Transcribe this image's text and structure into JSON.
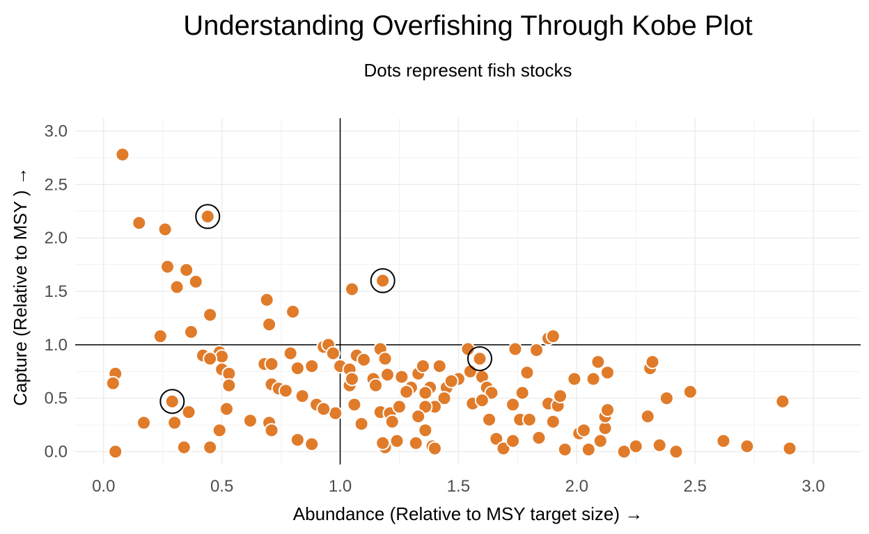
{
  "chart_data": {
    "type": "scatter",
    "title": "Understanding Overfishing Through Kobe Plot",
    "subtitle": "Dots represent fish stocks",
    "xlabel": "Abundance (Relative to MSY target size) →",
    "ylabel": "Capture (Relative to MSY ) →",
    "xlim": [
      -0.12,
      3.2
    ],
    "ylim": [
      -0.12,
      3.12
    ],
    "x_ticks": [
      "0.0",
      "0.5",
      "1.0",
      "1.5",
      "2.0",
      "2.5",
      "3.0"
    ],
    "y_ticks": [
      "0.0",
      "0.5",
      "1.0",
      "1.5",
      "2.0",
      "2.5",
      "3.0"
    ],
    "reference_lines": {
      "x": 1.0,
      "y": 1.0
    },
    "grid": true,
    "point_color": "#e07b2a",
    "highlight_ring_color": "#000000",
    "points": [
      [
        0.08,
        2.78
      ],
      [
        0.15,
        2.14
      ],
      [
        0.26,
        2.08
      ],
      [
        0.44,
        2.2
      ],
      [
        0.27,
        1.73
      ],
      [
        0.35,
        1.7
      ],
      [
        0.39,
        1.59
      ],
      [
        0.31,
        1.54
      ],
      [
        0.69,
        1.42
      ],
      [
        0.8,
        1.31
      ],
      [
        0.45,
        1.28
      ],
      [
        0.7,
        1.19
      ],
      [
        0.37,
        1.12
      ],
      [
        0.24,
        1.08
      ],
      [
        1.05,
        1.52
      ],
      [
        1.18,
        1.6
      ],
      [
        0.42,
        0.9
      ],
      [
        0.49,
        0.93
      ],
      [
        0.5,
        0.89
      ],
      [
        0.45,
        0.87
      ],
      [
        0.5,
        0.77
      ],
      [
        0.68,
        0.82
      ],
      [
        0.71,
        0.82
      ],
      [
        0.82,
        0.78
      ],
      [
        0.79,
        0.92
      ],
      [
        0.88,
        0.8
      ],
      [
        0.93,
        0.98
      ],
      [
        0.95,
        1.0
      ],
      [
        0.97,
        0.92
      ],
      [
        1.0,
        0.8
      ],
      [
        1.07,
        0.9
      ],
      [
        1.1,
        0.86
      ],
      [
        1.17,
        0.96
      ],
      [
        1.19,
        0.87
      ],
      [
        1.04,
        0.77
      ],
      [
        1.04,
        0.62
      ],
      [
        1.05,
        0.68
      ],
      [
        1.14,
        0.68
      ],
      [
        1.15,
        0.62
      ],
      [
        1.2,
        0.72
      ],
      [
        0.53,
        0.73
      ],
      [
        0.53,
        0.62
      ],
      [
        0.71,
        0.63
      ],
      [
        0.74,
        0.59
      ],
      [
        0.77,
        0.57
      ],
      [
        0.84,
        0.52
      ],
      [
        0.9,
        0.44
      ],
      [
        0.98,
        0.36
      ],
      [
        0.93,
        0.4
      ],
      [
        1.06,
        0.44
      ],
      [
        1.09,
        0.26
      ],
      [
        1.17,
        0.37
      ],
      [
        1.21,
        0.36
      ],
      [
        1.22,
        0.28
      ],
      [
        1.24,
        0.1
      ],
      [
        1.19,
        0.04
      ],
      [
        0.05,
        0.73
      ],
      [
        0.04,
        0.64
      ],
      [
        0.05,
        0.0
      ],
      [
        0.17,
        0.27
      ],
      [
        0.29,
        0.47
      ],
      [
        0.3,
        0.27
      ],
      [
        0.36,
        0.37
      ],
      [
        0.34,
        0.04
      ],
      [
        0.45,
        0.04
      ],
      [
        0.49,
        0.2
      ],
      [
        0.7,
        0.27
      ],
      [
        0.71,
        0.2
      ],
      [
        0.52,
        0.4
      ],
      [
        0.62,
        0.29
      ],
      [
        0.82,
        0.11
      ],
      [
        0.88,
        0.07
      ],
      [
        1.26,
        0.7
      ],
      [
        1.3,
        0.6
      ],
      [
        1.33,
        0.73
      ],
      [
        1.35,
        0.8
      ],
      [
        1.38,
        0.6
      ],
      [
        1.36,
        0.55
      ],
      [
        1.42,
        0.8
      ],
      [
        1.45,
        0.6
      ],
      [
        1.44,
        0.5
      ],
      [
        1.4,
        0.42
      ],
      [
        1.36,
        0.42
      ],
      [
        1.33,
        0.33
      ],
      [
        1.36,
        0.2
      ],
      [
        1.32,
        0.08
      ],
      [
        1.39,
        0.05
      ],
      [
        1.4,
        0.03
      ],
      [
        1.5,
        0.68
      ],
      [
        1.55,
        0.75
      ],
      [
        1.54,
        0.96
      ],
      [
        1.59,
        0.87
      ],
      [
        1.6,
        0.7
      ],
      [
        1.62,
        0.6
      ],
      [
        1.64,
        0.55
      ],
      [
        1.56,
        0.45
      ],
      [
        1.6,
        0.48
      ],
      [
        1.63,
        0.3
      ],
      [
        1.66,
        0.12
      ],
      [
        1.69,
        0.03
      ],
      [
        1.73,
        0.1
      ],
      [
        1.73,
        0.44
      ],
      [
        1.76,
        0.3
      ],
      [
        1.74,
        0.96
      ],
      [
        1.77,
        0.55
      ],
      [
        1.79,
        0.74
      ],
      [
        1.83,
        0.95
      ],
      [
        1.88,
        1.06
      ],
      [
        1.9,
        1.08
      ],
      [
        1.8,
        0.3
      ],
      [
        1.84,
        0.13
      ],
      [
        1.88,
        0.45
      ],
      [
        1.9,
        0.28
      ],
      [
        1.92,
        0.43
      ],
      [
        1.93,
        0.52
      ],
      [
        1.95,
        0.02
      ],
      [
        1.99,
        0.68
      ],
      [
        2.01,
        0.17
      ],
      [
        2.03,
        0.2
      ],
      [
        2.05,
        0.02
      ],
      [
        2.07,
        0.68
      ],
      [
        2.09,
        0.84
      ],
      [
        2.1,
        0.1
      ],
      [
        2.12,
        0.22
      ],
      [
        2.12,
        0.33
      ],
      [
        2.13,
        0.39
      ],
      [
        2.13,
        0.74
      ],
      [
        2.2,
        0.0
      ],
      [
        2.25,
        0.05
      ],
      [
        2.3,
        0.33
      ],
      [
        2.31,
        0.78
      ],
      [
        2.32,
        0.84
      ],
      [
        2.35,
        0.06
      ],
      [
        2.38,
        0.5
      ],
      [
        2.42,
        0.0
      ],
      [
        2.48,
        0.56
      ],
      [
        2.62,
        0.1
      ],
      [
        2.72,
        0.05
      ],
      [
        2.87,
        0.47
      ],
      [
        2.9,
        0.03
      ],
      [
        1.18,
        0.08
      ],
      [
        1.25,
        0.42
      ],
      [
        1.28,
        0.56
      ],
      [
        1.47,
        0.66
      ]
    ],
    "highlighted_points": [
      [
        0.44,
        2.2
      ],
      [
        1.18,
        1.6
      ],
      [
        1.59,
        0.87
      ],
      [
        0.29,
        0.47
      ]
    ]
  }
}
